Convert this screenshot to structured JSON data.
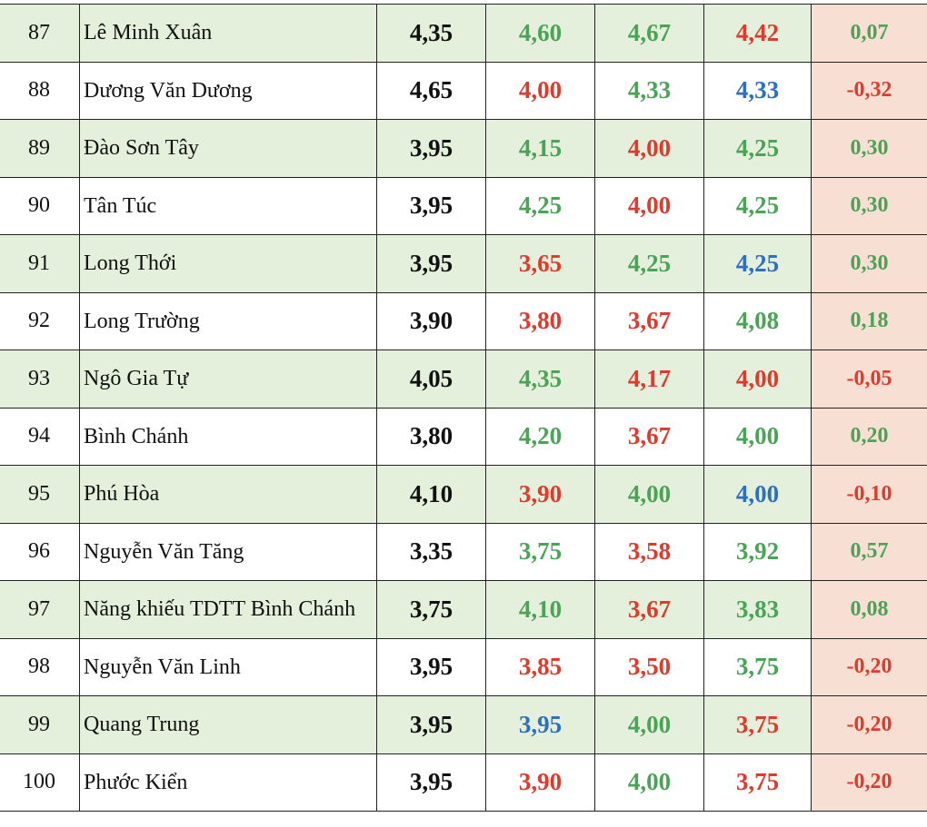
{
  "colors": {
    "green": "#4aa455",
    "red": "#df3a2c",
    "blue": "#2d6fc4",
    "row_shade": "#e4efdc",
    "diff_bg": "#f8dfd4"
  },
  "rows": [
    {
      "no": "87",
      "name": "Lê Minh Xuân",
      "v1": "4,35",
      "v2": "4,60",
      "v2c": "g",
      "v3": "4,67",
      "v3c": "g",
      "v4": "4,42",
      "v4c": "r",
      "diff": "0,07",
      "diffc": "g"
    },
    {
      "no": "88",
      "name": "Dương Văn Dương",
      "v1": "4,65",
      "v2": "4,00",
      "v2c": "r",
      "v3": "4,33",
      "v3c": "g",
      "v4": "4,33",
      "v4c": "b",
      "diff": "-0,32",
      "diffc": "r"
    },
    {
      "no": "89",
      "name": "Đào Sơn Tây",
      "v1": "3,95",
      "v2": "4,15",
      "v2c": "g",
      "v3": "4,00",
      "v3c": "r",
      "v4": "4,25",
      "v4c": "g",
      "diff": "0,30",
      "diffc": "g"
    },
    {
      "no": "90",
      "name": "Tân Túc",
      "v1": "3,95",
      "v2": "4,25",
      "v2c": "g",
      "v3": "4,00",
      "v3c": "r",
      "v4": "4,25",
      "v4c": "g",
      "diff": "0,30",
      "diffc": "g"
    },
    {
      "no": "91",
      "name": "Long Thới",
      "v1": "3,95",
      "v2": "3,65",
      "v2c": "r",
      "v3": "4,25",
      "v3c": "g",
      "v4": "4,25",
      "v4c": "b",
      "diff": "0,30",
      "diffc": "g"
    },
    {
      "no": "92",
      "name": "Long Trường",
      "v1": "3,90",
      "v2": "3,80",
      "v2c": "r",
      "v3": "3,67",
      "v3c": "r",
      "v4": "4,08",
      "v4c": "g",
      "diff": "0,18",
      "diffc": "g"
    },
    {
      "no": "93",
      "name": "Ngô Gia Tự",
      "v1": "4,05",
      "v2": "4,35",
      "v2c": "g",
      "v3": "4,17",
      "v3c": "r",
      "v4": "4,00",
      "v4c": "r",
      "diff": "-0,05",
      "diffc": "r"
    },
    {
      "no": "94",
      "name": "Bình Chánh",
      "v1": "3,80",
      "v2": "4,20",
      "v2c": "g",
      "v3": "3,67",
      "v3c": "r",
      "v4": "4,00",
      "v4c": "g",
      "diff": "0,20",
      "diffc": "g"
    },
    {
      "no": "95",
      "name": "Phú Hòa",
      "v1": "4,10",
      "v2": "3,90",
      "v2c": "r",
      "v3": "4,00",
      "v3c": "g",
      "v4": "4,00",
      "v4c": "b",
      "diff": "-0,10",
      "diffc": "r"
    },
    {
      "no": "96",
      "name": "Nguyễn Văn Tăng",
      "v1": "3,35",
      "v2": "3,75",
      "v2c": "g",
      "v3": "3,58",
      "v3c": "r",
      "v4": "3,92",
      "v4c": "g",
      "diff": "0,57",
      "diffc": "g"
    },
    {
      "no": "97",
      "name": "Năng khiếu TDTT Bình Chánh",
      "v1": "3,75",
      "v2": "4,10",
      "v2c": "g",
      "v3": "3,67",
      "v3c": "r",
      "v4": "3,83",
      "v4c": "g",
      "diff": "0,08",
      "diffc": "g"
    },
    {
      "no": "98",
      "name": "Nguyễn Văn Linh",
      "v1": "3,95",
      "v2": "3,85",
      "v2c": "r",
      "v3": "3,50",
      "v3c": "r",
      "v4": "3,75",
      "v4c": "g",
      "diff": "-0,20",
      "diffc": "r"
    },
    {
      "no": "99",
      "name": "Quang Trung",
      "v1": "3,95",
      "v2": "3,95",
      "v2c": "b",
      "v3": "4,00",
      "v3c": "g",
      "v4": "3,75",
      "v4c": "r",
      "diff": "-0,20",
      "diffc": "r"
    },
    {
      "no": "100",
      "name": "Phước Kiển",
      "v1": "3,95",
      "v2": "3,90",
      "v2c": "r",
      "v3": "4,00",
      "v3c": "g",
      "v4": "3,75",
      "v4c": "r",
      "diff": "-0,20",
      "diffc": "r"
    }
  ]
}
